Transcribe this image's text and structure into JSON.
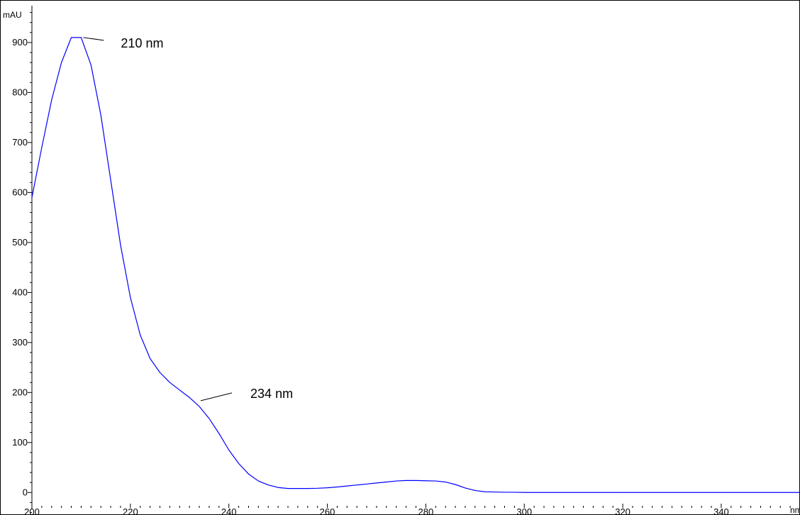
{
  "chart_data": {
    "type": "line",
    "title": "",
    "xlabel": "nm",
    "ylabel": "mAU",
    "xlim": [
      200,
      356
    ],
    "ylim": [
      -45,
      985
    ],
    "x_ticks": [
      200,
      220,
      240,
      260,
      280,
      300,
      320,
      340
    ],
    "y_ticks": [
      0,
      100,
      200,
      300,
      400,
      500,
      600,
      700,
      800,
      900
    ],
    "x_minor_step": 2,
    "y_minor_step": 20,
    "grid": false,
    "legend": "none",
    "line_color": "#0000ff",
    "series": [
      {
        "x": [
          200,
          202,
          204,
          206,
          208,
          210,
          212,
          214,
          216,
          218,
          220,
          222,
          224,
          226,
          228,
          230,
          232,
          234,
          236,
          238,
          240,
          242,
          244,
          246,
          248,
          250,
          252,
          254,
          256,
          258,
          260,
          262,
          264,
          266,
          268,
          270,
          272,
          274,
          276,
          278,
          280,
          282,
          284,
          286,
          288,
          290,
          292,
          294,
          296,
          298,
          300,
          310,
          320,
          330,
          340,
          350,
          356
        ],
        "y": [
          590,
          690,
          785,
          860,
          910,
          910,
          855,
          755,
          625,
          495,
          390,
          315,
          268,
          240,
          220,
          205,
          190,
          172,
          148,
          118,
          85,
          58,
          37,
          23,
          15,
          10,
          8,
          8,
          8,
          8.5,
          9.5,
          11,
          13,
          15,
          17,
          19,
          21,
          23,
          24,
          24,
          23.5,
          23,
          21,
          16,
          9,
          4,
          1.5,
          1,
          0.5,
          0.5,
          0,
          0,
          0,
          0,
          0,
          0,
          0
        ]
      }
    ],
    "annotations": [
      {
        "text": "210 nm",
        "x": 210,
        "y": 910
      },
      {
        "text": "234 nm",
        "x": 234,
        "y": 195
      }
    ]
  }
}
